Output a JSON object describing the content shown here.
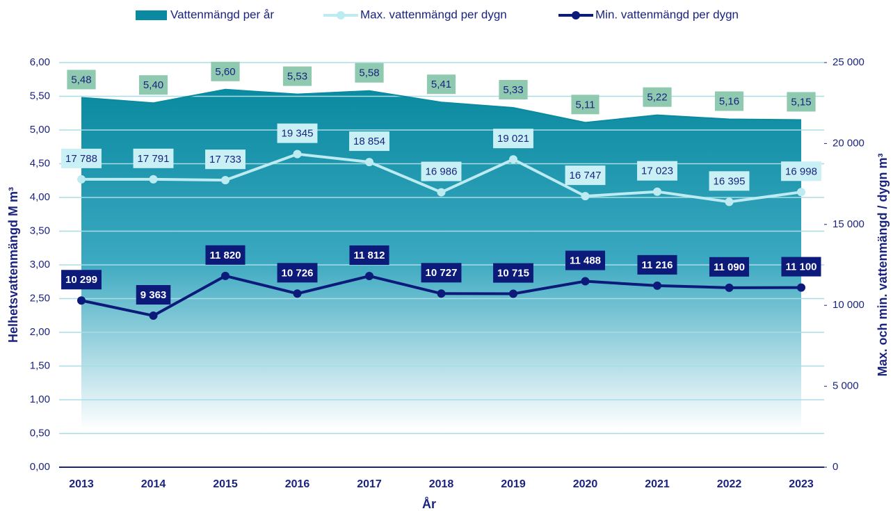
{
  "chart_data": {
    "type": "area-line",
    "x_label": "År",
    "y_label": "Helhetsvattenmängd M m³",
    "y2_label": "Max. och min. vattenmängd / dygn m³",
    "categories": [
      "2013",
      "2014",
      "2015",
      "2016",
      "2017",
      "2018",
      "2019",
      "2020",
      "2021",
      "2022",
      "2023"
    ],
    "ylim": [
      0,
      6
    ],
    "yticks": [
      {
        "value": 0,
        "label": "0,00"
      },
      {
        "value": 0.5,
        "label": "0,50"
      },
      {
        "value": 1,
        "label": "1,00"
      },
      {
        "value": 1.5,
        "label": "1,50"
      },
      {
        "value": 2,
        "label": "2,00"
      },
      {
        "value": 2.5,
        "label": "2,50"
      },
      {
        "value": 3,
        "label": "3,00"
      },
      {
        "value": 3.5,
        "label": "3,50"
      },
      {
        "value": 4,
        "label": "4,00"
      },
      {
        "value": 4.5,
        "label": "4,50"
      },
      {
        "value": 5,
        "label": "5,00"
      },
      {
        "value": 5.5,
        "label": "5,50"
      },
      {
        "value": 6,
        "label": "6,00"
      }
    ],
    "y2lim": [
      0,
      25000
    ],
    "y2ticks": [
      0,
      {
        "value": 5000,
        "label": "5 000"
      },
      {
        "value": 10000,
        "label": "10 000"
      },
      {
        "value": 15000,
        "label": "15 000"
      },
      {
        "value": 20000,
        "label": "20 000"
      },
      {
        "value": 25000,
        "label": "25 000"
      }
    ],
    "grid": true,
    "series": [
      {
        "name": "Vattenmängd per år",
        "kind": "area",
        "axis": "y",
        "color": "#0a8aa0",
        "values": [
          5.48,
          5.4,
          5.6,
          5.53,
          5.58,
          5.41,
          5.33,
          5.11,
          5.22,
          5.16,
          5.15
        ],
        "value_labels": [
          "5,48",
          "5,40",
          "5,60",
          "5,53",
          "5,58",
          "5,41",
          "5,33",
          "5,11",
          "5,22",
          "5,16",
          "5,15"
        ]
      },
      {
        "name": "Max. vattenmängd per dygn",
        "kind": "line",
        "axis": "y2",
        "color": "#bdebf2",
        "values": [
          17788,
          17791,
          17733,
          19345,
          18854,
          16986,
          19021,
          16747,
          17023,
          16395,
          16998
        ],
        "value_labels": [
          "17 788",
          "17 791",
          "17 733",
          "19 345",
          "18 854",
          "16 986",
          "19 021",
          "16 747",
          "17 023",
          "16 395",
          "16 998"
        ]
      },
      {
        "name": "Min. vattenmängd per dygn",
        "kind": "line",
        "axis": "y2",
        "color": "#0c1a7a",
        "values": [
          10299,
          9363,
          11820,
          10726,
          11812,
          10727,
          10715,
          11488,
          11216,
          11090,
          11100
        ],
        "value_labels": [
          "10 299",
          "9 363",
          "11 820",
          "10 726",
          "11 812",
          "10 727",
          "10 715",
          "11 488",
          "11 216",
          "11 090",
          "11 100"
        ]
      }
    ]
  }
}
